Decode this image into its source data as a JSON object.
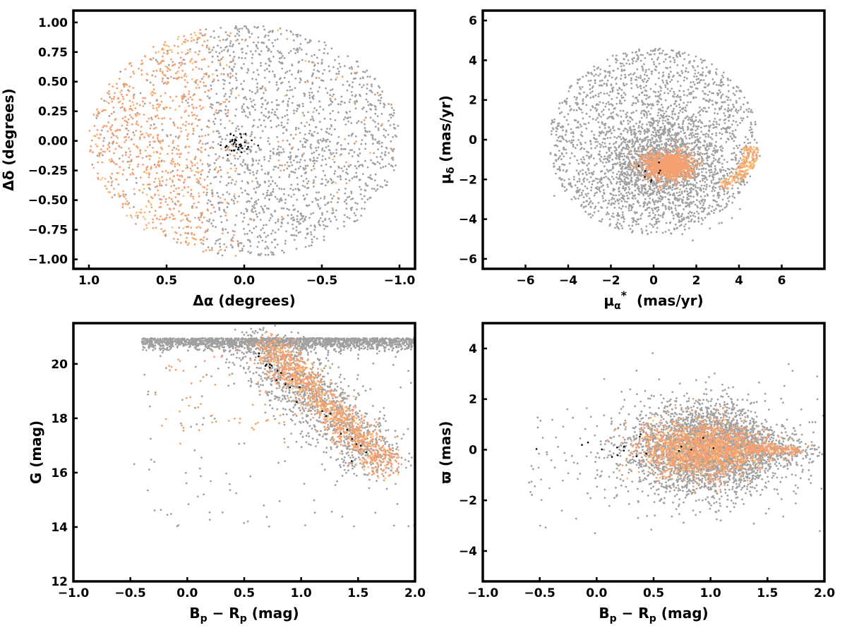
{
  "figure": {
    "background": "#ffffff"
  },
  "colors": {
    "field": "#a0a0a0",
    "members": "#f5a070",
    "members_light": "#f8c07a",
    "highlight": "#000000"
  },
  "chart_data": [
    {
      "id": "sky",
      "type": "scatter",
      "xlabel": "Δα (degrees)",
      "ylabel": "Δδ (degrees)",
      "xlim": [
        1.1,
        -1.1
      ],
      "ylim": [
        -1.08,
        1.1
      ],
      "xticks": [
        1.0,
        0.5,
        0.0,
        -0.5,
        -1.0
      ],
      "xtick_labels": [
        "1.0",
        "0.5",
        "0.0",
        "−0.5",
        "−1.0"
      ],
      "yticks": [
        1.0,
        0.75,
        0.5,
        0.25,
        0.0,
        -0.25,
        -0.5,
        -0.75,
        -1.0
      ],
      "ytick_labels": [
        "1.00",
        "0.75",
        "0.50",
        "0.25",
        "0.00",
        "−0.25",
        "−0.50",
        "−0.75",
        "−1.00"
      ],
      "series": [
        {
          "values": [
            [
              0.0,
              0.85
            ],
            [
              -0.5,
              0.6
            ],
            [
              -0.8,
              0.1
            ],
            [
              -0.5,
              -0.4
            ],
            [
              0.0,
              -0.85
            ],
            [
              -0.2,
              0.3
            ],
            [
              0.1,
              -0.5
            ],
            [
              -0.7,
              -0.5
            ]
          ]
        },
        {
          "values": [
            [
              0.9,
              -0.05
            ],
            [
              0.7,
              0.3
            ],
            [
              0.5,
              -0.6
            ],
            [
              0.8,
              -0.4
            ],
            [
              0.3,
              -0.8
            ],
            [
              0.75,
              0.5
            ],
            [
              0.6,
              0.1
            ]
          ]
        },
        {
          "values": [
            [
              0.02,
              0.03
            ],
            [
              0.05,
              -0.01
            ],
            [
              -0.02,
              0.05
            ],
            [
              0.08,
              -0.05
            ],
            [
              -0.05,
              0.01
            ]
          ]
        }
      ]
    },
    {
      "id": "proper-motion",
      "type": "scatter",
      "xlabel": "μα* (mas/yr)",
      "ylabel": "μδ (mas/yr)",
      "xlim": [
        -8,
        8
      ],
      "ylim": [
        -6.5,
        6.5
      ],
      "xticks": [
        -6,
        -4,
        -2,
        0,
        2,
        4,
        6
      ],
      "xtick_labels": [
        "−6",
        "−4",
        "−2",
        "0",
        "2",
        "4",
        "6"
      ],
      "yticks": [
        6,
        4,
        2,
        0,
        -2,
        -4,
        -6
      ],
      "ytick_labels": [
        "6",
        "4",
        "2",
        "0",
        "−2",
        "−4",
        "−6"
      ],
      "series": [
        {
          "values": [
            [
              0.0,
              0.0
            ],
            [
              -3.0,
              -1.0
            ],
            [
              3.5,
              0.5
            ],
            [
              0.5,
              -4.0
            ],
            [
              -1.5,
              2.5
            ],
            [
              1.0,
              3.0
            ]
          ]
        },
        {
          "values": [
            [
              0.3,
              -1.3
            ],
            [
              0.8,
              -1.1
            ],
            [
              -0.2,
              -1.5
            ],
            [
              1.2,
              -1.4
            ],
            [
              4.0,
              -2.0
            ],
            [
              4.3,
              -1.2
            ]
          ]
        },
        {
          "values": [
            [
              -0.5,
              -1.4
            ],
            [
              0.5,
              -2.3
            ],
            [
              0.3,
              -1.7
            ]
          ]
        }
      ]
    },
    {
      "id": "cmd",
      "type": "scatter",
      "xlabel": "Bp − Rp (mag)",
      "ylabel": "G (mag)",
      "xlim": [
        -1.0,
        2.0
      ],
      "ylim": [
        12.0,
        21.5
      ],
      "xticks": [
        -1.0,
        -0.5,
        0.0,
        0.5,
        1.0,
        1.5,
        2.0
      ],
      "xtick_labels": [
        "−1.0",
        "−0.5",
        "0.0",
        "0.5",
        "1.0",
        "1.5",
        "2.0"
      ],
      "yticks": [
        12,
        14,
        16,
        18,
        20
      ],
      "ytick_labels": [
        "12",
        "14",
        "16",
        "18",
        "20"
      ],
      "series": [
        {
          "values": [
            [
              0.3,
              20.8
            ],
            [
              1.0,
              20.7
            ],
            [
              1.7,
              20.5
            ],
            [
              1.2,
              19.5
            ],
            [
              0.8,
              18.5
            ],
            [
              1.5,
              17.8
            ]
          ]
        },
        {
          "values": [
            [
              0.6,
              20.6
            ],
            [
              0.9,
              20.0
            ],
            [
              1.0,
              19.2
            ],
            [
              1.15,
              18.3
            ],
            [
              1.35,
              17.3
            ],
            [
              1.55,
              16.6
            ],
            [
              1.75,
              16.2
            ]
          ]
        },
        {
          "values": [
            [
              0.7,
              19.5
            ],
            [
              1.05,
              19.9
            ],
            [
              1.38,
              17.85
            ],
            [
              1.56,
              16.35
            ],
            [
              -0.25,
              20.25
            ]
          ]
        }
      ]
    },
    {
      "id": "parallax",
      "type": "scatter",
      "xlabel": "Bp − Rp (mag)",
      "ylabel": "ϖ (mas)",
      "xlim": [
        -1.0,
        2.0
      ],
      "ylim": [
        -5.2,
        5.0
      ],
      "xticks": [
        -1.0,
        -0.5,
        0.0,
        0.5,
        1.0,
        1.5,
        2.0
      ],
      "xtick_labels": [
        "−1.0",
        "−0.5",
        "0.0",
        "0.5",
        "1.0",
        "1.5",
        "2.0"
      ],
      "yticks": [
        4,
        2,
        0,
        -2,
        -4
      ],
      "ytick_labels": [
        "4",
        "2",
        "0",
        "−2",
        "−4"
      ],
      "series": [
        {
          "values": [
            [
              1.0,
              0.0
            ],
            [
              1.4,
              0.5
            ],
            [
              0.7,
              -0.8
            ],
            [
              1.7,
              1.2
            ],
            [
              0.3,
              -0.2
            ]
          ]
        },
        {
          "values": [
            [
              0.95,
              0.0
            ],
            [
              1.2,
              0.1
            ],
            [
              1.6,
              0.0
            ],
            [
              0.8,
              -0.3
            ]
          ]
        },
        {
          "values": [
            [
              0.43,
              0.2
            ],
            [
              0.68,
              0.15
            ],
            [
              -0.25,
              -0.3
            ]
          ]
        }
      ]
    }
  ]
}
